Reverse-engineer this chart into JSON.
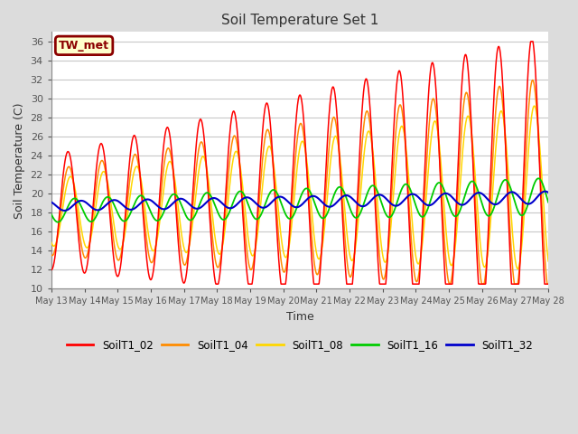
{
  "title": "Soil Temperature Set 1",
  "xlabel": "Time",
  "ylabel": "Soil Temperature (C)",
  "ylim": [
    10,
    37
  ],
  "yticks": [
    10,
    12,
    14,
    16,
    18,
    20,
    22,
    24,
    26,
    28,
    30,
    32,
    34,
    36
  ],
  "annotation_text": "TW_met",
  "annotation_box_facecolor": "#ffffcc",
  "annotation_box_edgecolor": "#8B0000",
  "annotation_text_color": "#8B0000",
  "colors": {
    "SoilT1_02": "#FF0000",
    "SoilT1_04": "#FF8C00",
    "SoilT1_08": "#FFD700",
    "SoilT1_16": "#00CC00",
    "SoilT1_32": "#0000CC"
  },
  "background_color": "#DCDCDC",
  "plot_bg_color": "#FFFFFF",
  "grid_color": "#C8C8C8",
  "start_day": 13,
  "end_day": 28,
  "n_points": 2000
}
